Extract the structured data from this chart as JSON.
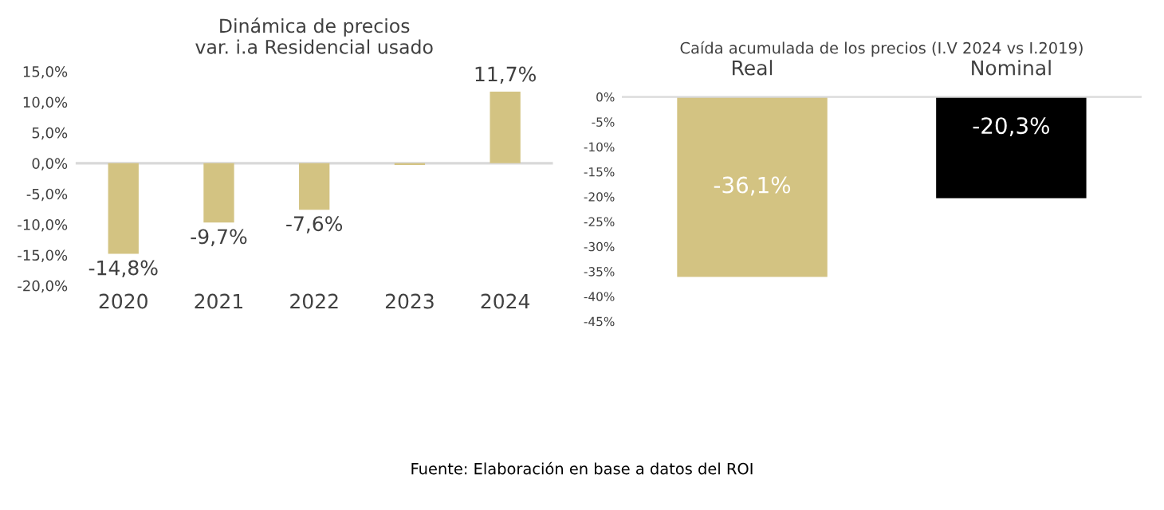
{
  "chart_data": [
    {
      "type": "bar",
      "title": "Dinámica de precios\nvar. i.a Residencial usado",
      "categories": [
        "2020",
        "2021",
        "2022",
        "2023",
        "2024"
      ],
      "values": [
        -14.8,
        -9.7,
        -7.6,
        -0.3,
        11.7
      ],
      "color": "#d3c382",
      "value_labels": [
        "-14,8%",
        "-9,7%",
        "-7,6%",
        null,
        "11,7%"
      ],
      "ylim": [
        -20,
        15
      ],
      "yticks": [
        {
          "value": -20,
          "label": "-20,0%"
        },
        {
          "value": -15,
          "label": "-15,0%"
        },
        {
          "value": -10,
          "label": "-10,0%"
        },
        {
          "value": -5,
          "label": "-5,0%"
        },
        {
          "value": 0,
          "label": "0,0%"
        },
        {
          "value": 5,
          "label": "5,0%"
        },
        {
          "value": 10,
          "label": "10,0%"
        },
        {
          "value": 15,
          "label": "15,0%"
        }
      ],
      "ref_lines": [
        {
          "axis": "y",
          "value": 0,
          "color": "#d9d9d9"
        }
      ],
      "annotations": [
        "Fuente: Elaboración en base a datos del ROI"
      ]
    },
    {
      "type": "bar",
      "title": "Caída acumulada de los precios (I.V 2024 vs I.2019)",
      "categories": [
        "Real",
        "Nominal"
      ],
      "values": [
        -36.1,
        -20.3
      ],
      "colors": [
        "#d3c382",
        "#000000"
      ],
      "value_labels": [
        "-36,1%",
        "-20,3%"
      ],
      "ylim": [
        -45,
        0
      ],
      "yticks": [
        {
          "value": 0,
          "label": "0%"
        },
        {
          "value": -5,
          "label": "-5%"
        },
        {
          "value": -10,
          "label": "-10%"
        },
        {
          "value": -15,
          "label": "-15%"
        },
        {
          "value": -20,
          "label": "-20%"
        },
        {
          "value": -25,
          "label": "-25%"
        },
        {
          "value": -30,
          "label": "-30%"
        },
        {
          "value": -35,
          "label": "-35%"
        },
        {
          "value": -40,
          "label": "-40%"
        },
        {
          "value": -45,
          "label": "-45%"
        }
      ]
    }
  ]
}
